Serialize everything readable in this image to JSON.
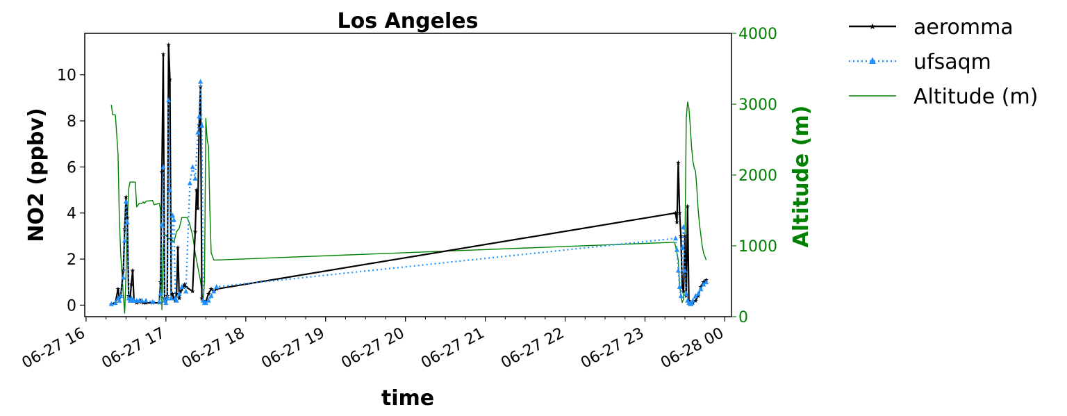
{
  "chart_data": {
    "type": "line",
    "title": "Los Angeles",
    "xlabel": "time",
    "ylabel": "NO2 (ppbv)",
    "y2label": "Altitude (m)",
    "xlim": [
      "06-27 15:59",
      "06-28 00:05"
    ],
    "ylim": [
      -0.5,
      11.8
    ],
    "y2lim": [
      0,
      4000
    ],
    "x_ticks": [
      "06-27 16:00",
      "06-27 17:00",
      "06-27 18:00",
      "06-27 19:00",
      "06-27 20:00",
      "06-27 21:00",
      "06-27 22:00",
      "06-27 23:00",
      "06-28 00:00"
    ],
    "x_tick_labels": [
      "06-27 16",
      "06-27 17",
      "06-27 18",
      "06-27 19",
      "06-27 20",
      "06-27 21",
      "06-27 22",
      "06-27 23",
      "06-28 00"
    ],
    "y_ticks": [
      0,
      2,
      4,
      6,
      8,
      10
    ],
    "y2_ticks": [
      0,
      1000,
      2000,
      3000,
      4000
    ],
    "legend_position": "outside-top-right",
    "grid": false,
    "colors": {
      "aeromma": "#000000",
      "ufsaqm": "#1e90ff",
      "altitude": "#008000"
    },
    "series": [
      {
        "name": "aeromma",
        "axis": "left",
        "style": "solid",
        "marker": "star",
        "x": [
          "06-27 16:19",
          "06-27 16:22",
          "06-27 16:24",
          "06-27 16:25",
          "06-27 16:26",
          "06-27 16:28",
          "06-27 16:29",
          "06-27 16:30",
          "06-27 16:31",
          "06-27 16:32",
          "06-27 16:33",
          "06-27 16:34",
          "06-27 16:35",
          "06-27 16:36",
          "06-27 16:38",
          "06-27 16:40",
          "06-27 16:41",
          "06-27 16:42",
          "06-27 16:43",
          "06-27 16:45",
          "06-27 16:50",
          "06-27 16:55",
          "06-27 16:56",
          "06-27 16:57",
          "06-27 16:58",
          "06-27 16:59",
          "06-27 17:00",
          "06-27 17:01",
          "06-27 17:02",
          "06-27 17:03",
          "06-27 17:04",
          "06-27 17:05",
          "06-27 17:06",
          "06-27 17:07",
          "06-27 17:08",
          "06-27 17:09",
          "06-27 17:10",
          "06-27 17:11",
          "06-27 17:12",
          "06-27 17:13",
          "06-27 17:14",
          "06-27 17:15",
          "06-27 17:20",
          "06-27 17:22",
          "06-27 17:23",
          "06-27 17:24",
          "06-27 17:25",
          "06-27 17:26",
          "06-27 17:27",
          "06-27 17:28",
          "06-27 17:29",
          "06-27 17:30",
          "06-27 17:32",
          "06-27 17:34",
          "06-27 17:36",
          "06-27 17:38",
          "06-27 23:23",
          "06-27 23:24",
          "06-27 23:25",
          "06-27 23:26",
          "06-27 23:27",
          "06-27 23:28",
          "06-27 23:29",
          "06-27 23:30",
          "06-27 23:31",
          "06-27 23:32",
          "06-27 23:33",
          "06-27 23:34",
          "06-27 23:35",
          "06-27 23:36",
          "06-27 23:38",
          "06-27 23:40",
          "06-27 23:42",
          "06-27 23:44",
          "06-27 23:46"
        ],
        "values": [
          0.05,
          0.1,
          0.7,
          0.3,
          0.4,
          1.5,
          3.3,
          4.7,
          3.8,
          0.4,
          0.2,
          0.9,
          1.5,
          0.2,
          0.1,
          0.15,
          0.2,
          0.15,
          0.1,
          0.1,
          0.1,
          0.1,
          1.0,
          5.8,
          10.9,
          0.3,
          0.2,
          0.4,
          11.3,
          9.8,
          0.3,
          0.5,
          0.3,
          0.2,
          0.5,
          2.5,
          0.3,
          0.6,
          0.7,
          0.8,
          0.9,
          0.8,
          0.6,
          3.2,
          5.0,
          4.2,
          7.8,
          9.5,
          0.3,
          0.2,
          0.1,
          0.15,
          0.5,
          0.7,
          0.6,
          0.7,
          4.0,
          3.6,
          6.2,
          4.0,
          3.0,
          0.8,
          0.6,
          3.0,
          0.4,
          4.3,
          0.2,
          0.1,
          0.05,
          0.1,
          0.2,
          0.4,
          0.8,
          1.0,
          1.1
        ]
      },
      {
        "name": "ufsaqm",
        "axis": "left",
        "style": "dotted",
        "marker": "triangle",
        "x": [
          "06-27 16:19",
          "06-27 16:22",
          "06-27 16:24",
          "06-27 16:25",
          "06-27 16:26",
          "06-27 16:28",
          "06-27 16:29",
          "06-27 16:30",
          "06-27 16:31",
          "06-27 16:32",
          "06-27 16:33",
          "06-27 16:34",
          "06-27 16:35",
          "06-27 16:36",
          "06-27 16:38",
          "06-27 16:40",
          "06-27 16:42",
          "06-27 16:45",
          "06-27 16:50",
          "06-27 16:55",
          "06-27 16:56",
          "06-27 16:57",
          "06-27 16:58",
          "06-27 16:59",
          "06-27 17:00",
          "06-27 17:01",
          "06-27 17:02",
          "06-27 17:03",
          "06-27 17:04",
          "06-27 17:05",
          "06-27 17:06",
          "06-27 17:07",
          "06-27 17:08",
          "06-27 17:10",
          "06-27 17:12",
          "06-27 17:15",
          "06-27 17:18",
          "06-27 17:20",
          "06-27 17:22",
          "06-27 17:24",
          "06-27 17:25",
          "06-27 17:26",
          "06-27 17:27",
          "06-27 17:28",
          "06-27 17:29",
          "06-27 17:30",
          "06-27 17:32",
          "06-27 17:34",
          "06-27 17:36",
          "06-27 17:38",
          "06-27 23:23",
          "06-27 23:24",
          "06-27 23:25",
          "06-27 23:26",
          "06-27 23:27",
          "06-27 23:28",
          "06-27 23:29",
          "06-27 23:30",
          "06-27 23:31",
          "06-27 23:32",
          "06-27 23:33",
          "06-27 23:34",
          "06-27 23:35",
          "06-27 23:36",
          "06-27 23:38",
          "06-27 23:40",
          "06-27 23:42",
          "06-27 23:44",
          "06-27 23:46"
        ],
        "values": [
          0.05,
          0.1,
          0.3,
          0.2,
          0.4,
          1.2,
          2.8,
          4.5,
          3.6,
          0.3,
          0.2,
          0.3,
          0.2,
          0.2,
          0.2,
          0.2,
          0.2,
          0.2,
          0.15,
          0.15,
          0.5,
          3.5,
          6.0,
          0.2,
          0.1,
          0.3,
          8.9,
          5.0,
          0.3,
          3.9,
          3.7,
          0.3,
          0.2,
          0.5,
          0.8,
          0.6,
          5.3,
          6.0,
          5.5,
          7.5,
          8.2,
          9.7,
          7.8,
          0.2,
          0.1,
          0.1,
          0.2,
          0.4,
          0.6,
          0.8,
          2.9,
          2.4,
          1.5,
          0.8,
          0.4,
          2.5,
          3.4,
          1.5,
          0.5,
          0.2,
          0.1,
          0.05,
          0.1,
          0.2,
          0.4,
          0.5,
          0.7,
          0.9,
          1.0
        ]
      },
      {
        "name": "Altitude (m)",
        "axis": "right",
        "style": "solid",
        "marker": "none",
        "x": [
          "06-27 16:19",
          "06-27 16:20",
          "06-27 16:21",
          "06-27 16:22",
          "06-27 16:24",
          "06-27 16:25",
          "06-27 16:26",
          "06-27 16:28",
          "06-27 16:29",
          "06-27 16:30",
          "06-27 16:31",
          "06-27 16:32",
          "06-27 16:33",
          "06-27 16:34",
          "06-27 16:35",
          "06-27 16:36",
          "06-27 16:37",
          "06-27 16:38",
          "06-27 16:40",
          "06-27 16:42",
          "06-27 16:43",
          "06-27 16:44",
          "06-27 16:45",
          "06-27 16:50",
          "06-27 16:51",
          "06-27 16:55",
          "06-27 16:56",
          "06-27 16:57",
          "06-27 16:58",
          "06-27 16:59",
          "06-27 17:00",
          "06-27 17:02",
          "06-27 17:04",
          "06-27 17:06",
          "06-27 17:08",
          "06-27 17:10",
          "06-27 17:12",
          "06-27 17:14",
          "06-27 17:16",
          "06-27 17:18",
          "06-27 17:20",
          "06-27 17:22",
          "06-27 17:24",
          "06-27 17:26",
          "06-27 17:28",
          "06-27 17:29",
          "06-27 17:30",
          "06-27 17:31",
          "06-27 17:32",
          "06-27 17:33",
          "06-27 17:34",
          "06-27 17:35",
          "06-27 17:36",
          "06-27 17:38",
          "06-27 23:21",
          "06-27 23:22",
          "06-27 23:23",
          "06-27 23:24",
          "06-27 23:25",
          "06-27 23:26",
          "06-27 23:27",
          "06-27 23:28",
          "06-27 23:29",
          "06-27 23:30",
          "06-27 23:31",
          "06-27 23:32",
          "06-27 23:33",
          "06-27 23:34",
          "06-27 23:35",
          "06-27 23:36",
          "06-27 23:37",
          "06-27 23:38",
          "06-27 23:39",
          "06-27 23:40",
          "06-27 23:41",
          "06-27 23:42",
          "06-27 23:43",
          "06-27 23:44",
          "06-27 23:45",
          "06-27 23:46"
        ],
        "values": [
          2990,
          2850,
          2850,
          2850,
          2300,
          1400,
          900,
          300,
          50,
          600,
          1350,
          1800,
          1900,
          1900,
          1900,
          1900,
          1900,
          1550,
          1600,
          1600,
          1620,
          1600,
          1630,
          1640,
          1580,
          1600,
          1500,
          100,
          1000,
          1150,
          1150,
          1100,
          1100,
          1050,
          1200,
          1250,
          1400,
          1400,
          1400,
          1300,
          1150,
          900,
          700,
          500,
          200,
          500,
          2800,
          2500,
          2400,
          1500,
          900,
          850,
          800,
          800,
          1050,
          1050,
          1000,
          900,
          800,
          450,
          300,
          200,
          250,
          1000,
          2800,
          3030,
          2950,
          2700,
          2400,
          2200,
          2100,
          2050,
          1800,
          1500,
          1300,
          1150,
          1000,
          900,
          850,
          800
        ]
      }
    ]
  }
}
